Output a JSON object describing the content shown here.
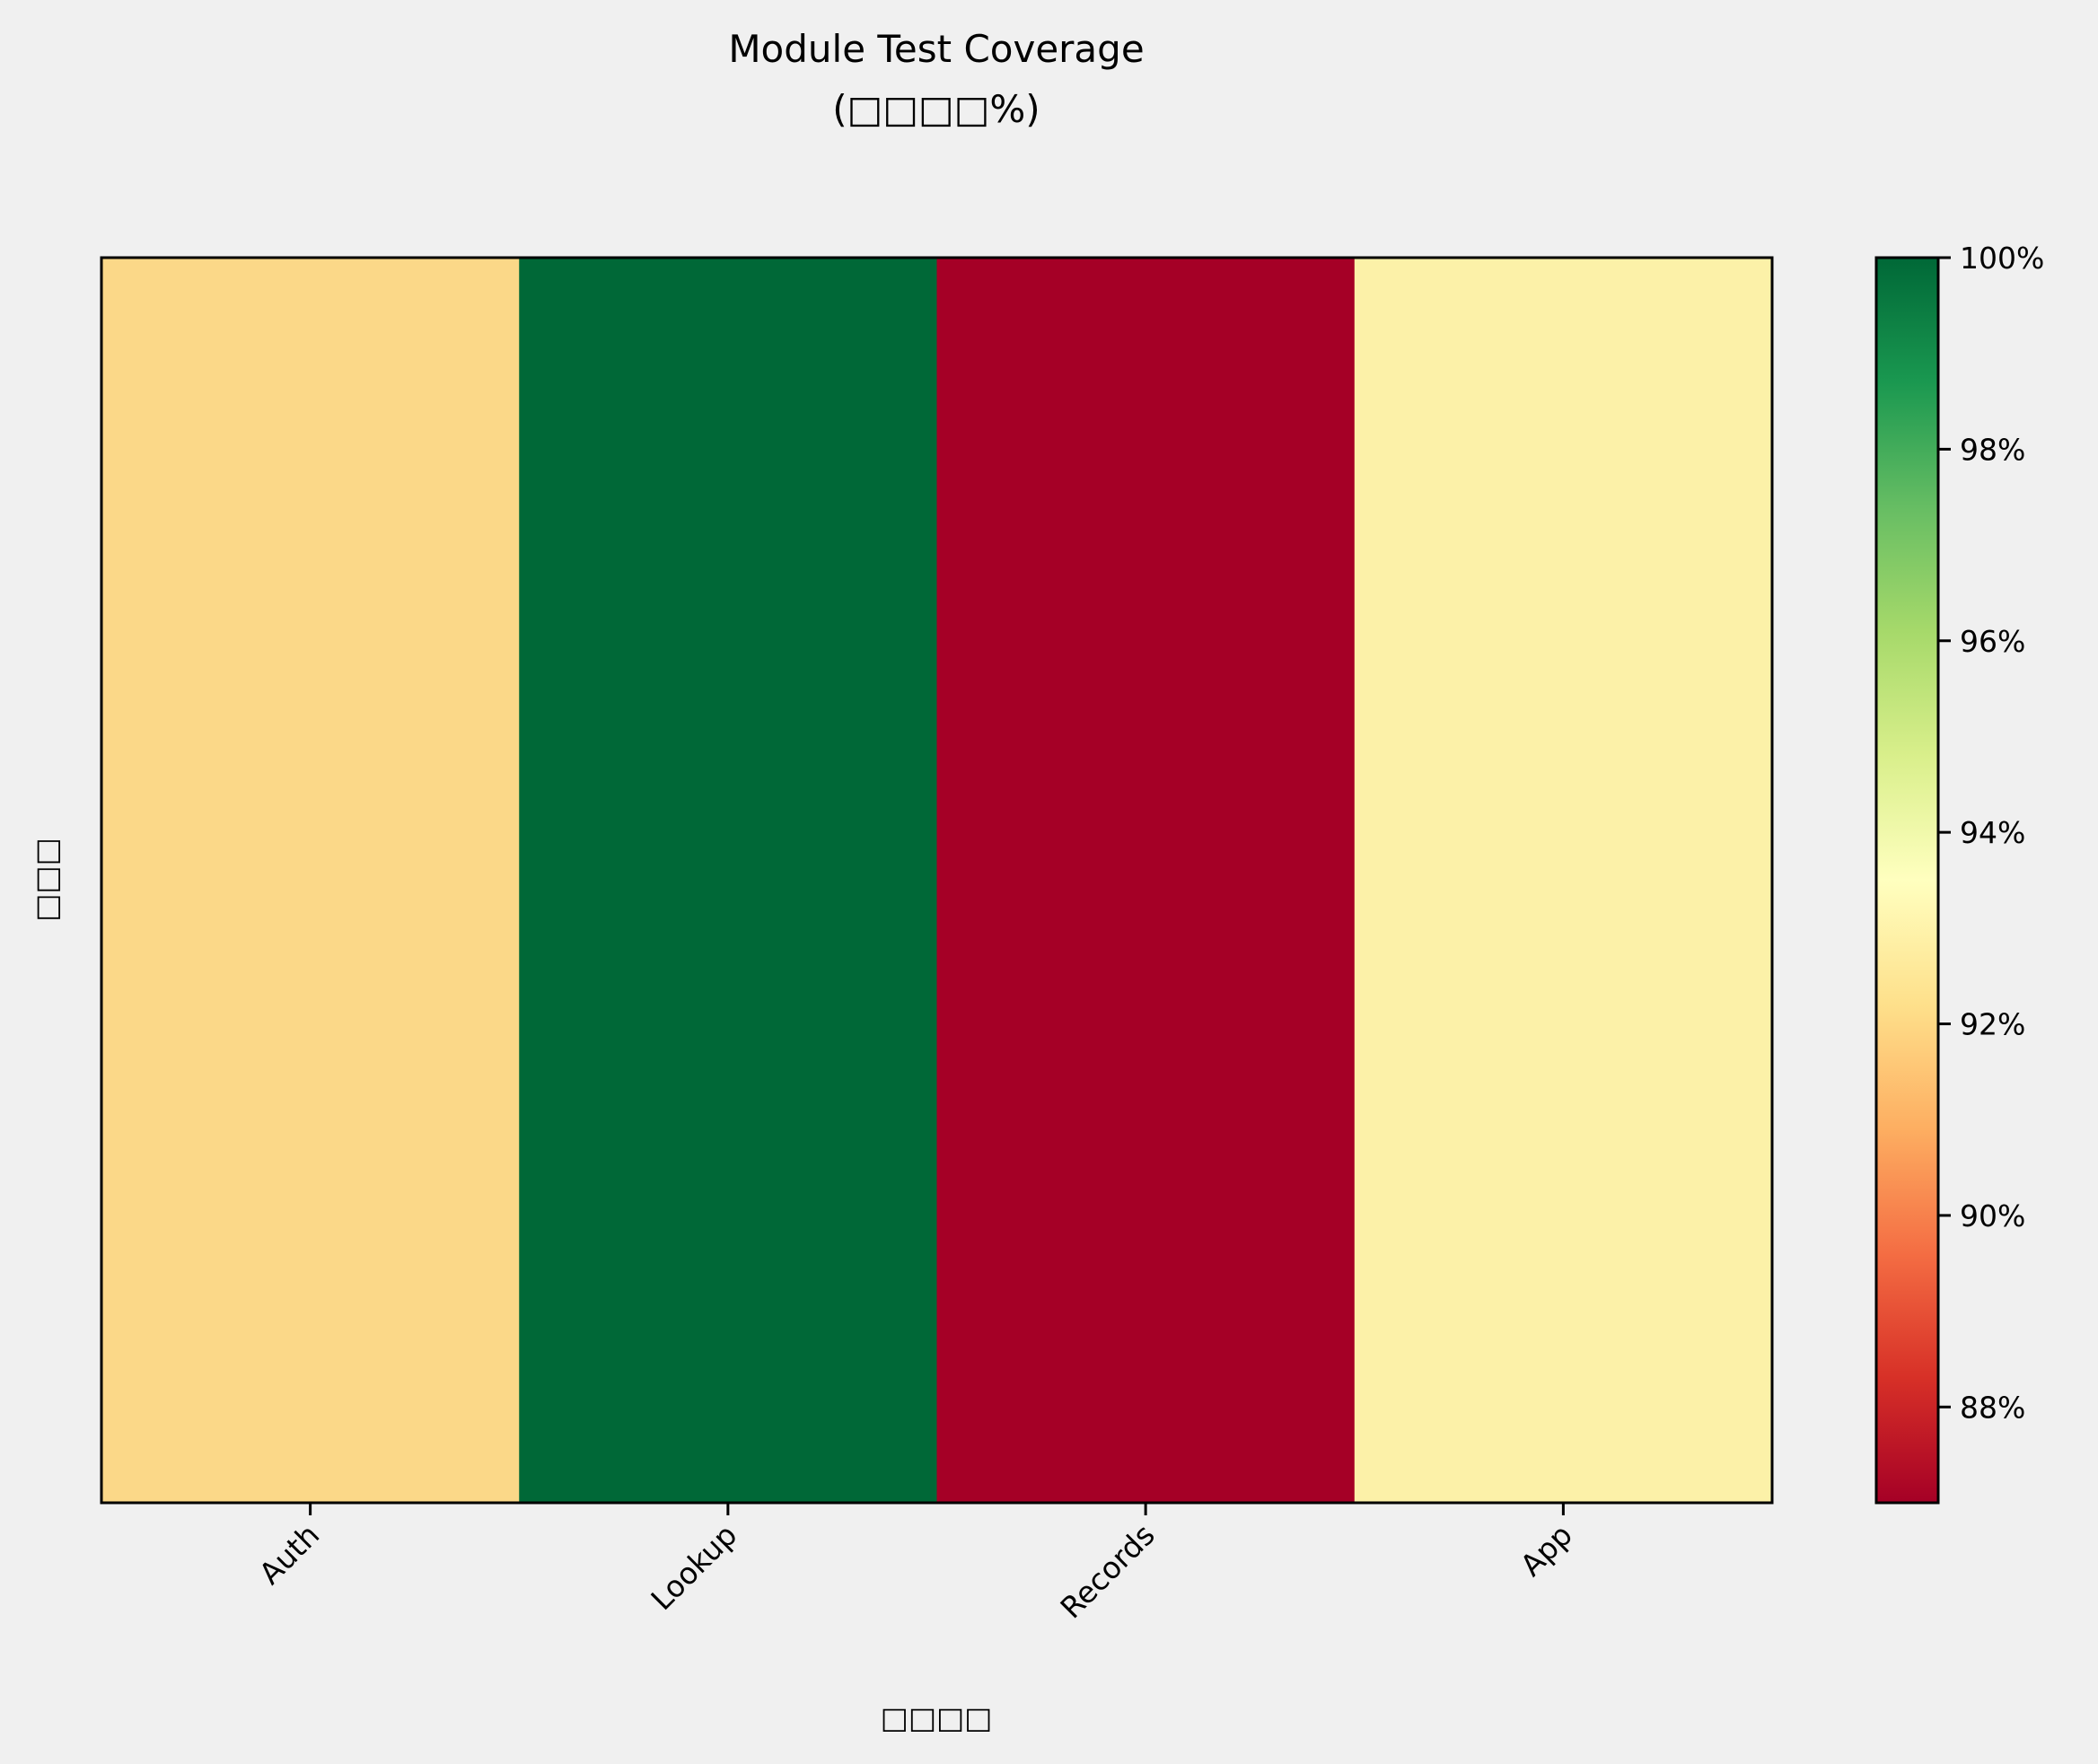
{
  "chart_data": {
    "type": "heatmap",
    "title": "Module Test Coverage",
    "subtitle": "(□□□□%)",
    "xlabel": "□□□□",
    "ylabel": "□□□",
    "categories": [
      "Auth",
      "Lookup",
      "Records",
      "App"
    ],
    "values": [
      92.4,
      100.0,
      87.0,
      93.2
    ],
    "colorbar": {
      "min": 87.0,
      "max": 100.0,
      "ticks": [
        88,
        90,
        92,
        94,
        96,
        98,
        100
      ],
      "tick_labels": [
        "88%",
        "90%",
        "92%",
        "94%",
        "96%",
        "98%",
        "100%"
      ],
      "colormap": "RdYlGn"
    },
    "grid": false
  },
  "colors": {
    "background": "#f0f0f0",
    "cell_auth": "#fbd888",
    "cell_lookup": "#006837",
    "cell_records": "#a50026",
    "cell_app": "#fcf1a8"
  }
}
